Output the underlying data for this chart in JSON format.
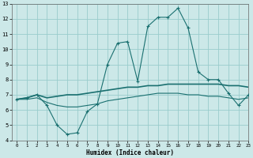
{
  "xlabel": "Humidex (Indice chaleur)",
  "xlim": [
    -0.5,
    23
  ],
  "ylim": [
    4,
    13
  ],
  "xticks": [
    0,
    1,
    2,
    3,
    4,
    5,
    6,
    7,
    8,
    9,
    10,
    11,
    12,
    13,
    14,
    15,
    16,
    17,
    18,
    19,
    20,
    21,
    22,
    23
  ],
  "yticks": [
    4,
    5,
    6,
    7,
    8,
    9,
    10,
    11,
    12,
    13
  ],
  "bg_color": "#cce8e8",
  "grid_color": "#99cccc",
  "line_color": "#1a7070",
  "line1_x": [
    0,
    1,
    2,
    3,
    4,
    5,
    6,
    7,
    8,
    9,
    10,
    11,
    12,
    13,
    14,
    15,
    16,
    17,
    18,
    19,
    20,
    21,
    22,
    23
  ],
  "line1_y": [
    6.7,
    6.8,
    7.0,
    6.3,
    5.0,
    4.4,
    4.5,
    5.9,
    6.4,
    9.0,
    10.4,
    10.5,
    7.9,
    11.5,
    12.1,
    12.1,
    12.7,
    11.4,
    8.5,
    8.0,
    8.0,
    7.1,
    6.3,
    7.0
  ],
  "line2_x": [
    0,
    1,
    2,
    3,
    4,
    5,
    6,
    7,
    8,
    9,
    10,
    11,
    12,
    13,
    14,
    15,
    16,
    17,
    18,
    19,
    20,
    21,
    22,
    23
  ],
  "line2_y": [
    6.7,
    6.8,
    7.0,
    6.8,
    6.9,
    7.0,
    7.0,
    7.1,
    7.2,
    7.3,
    7.4,
    7.5,
    7.5,
    7.6,
    7.6,
    7.7,
    7.7,
    7.7,
    7.7,
    7.7,
    7.7,
    7.6,
    7.6,
    7.5
  ],
  "line3_x": [
    0,
    1,
    2,
    3,
    4,
    5,
    6,
    7,
    8,
    9,
    10,
    11,
    12,
    13,
    14,
    15,
    16,
    17,
    18,
    19,
    20,
    21,
    22,
    23
  ],
  "line3_y": [
    6.7,
    6.7,
    6.8,
    6.5,
    6.3,
    6.2,
    6.2,
    6.3,
    6.4,
    6.6,
    6.7,
    6.8,
    6.9,
    7.0,
    7.1,
    7.1,
    7.1,
    7.0,
    7.0,
    6.9,
    6.9,
    6.8,
    6.7,
    6.8
  ]
}
